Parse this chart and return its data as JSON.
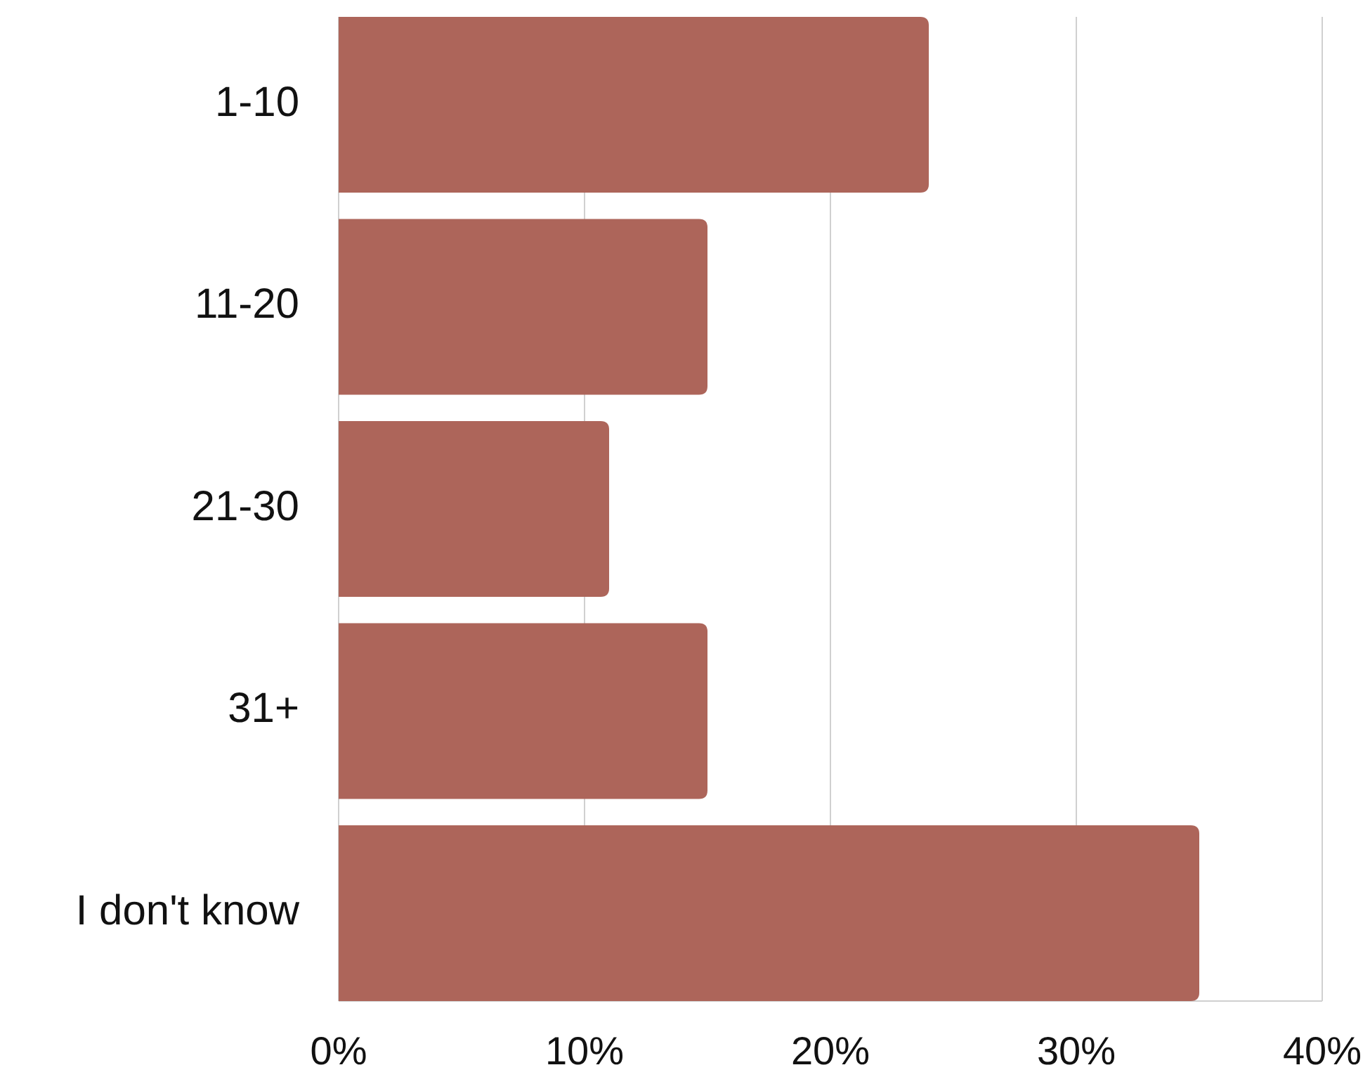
{
  "chart_data": {
    "type": "bar",
    "orientation": "horizontal",
    "categories": [
      "1-10",
      "11-20",
      "21-30",
      "31+",
      "I don't know"
    ],
    "values": [
      24,
      15,
      11,
      15,
      35
    ],
    "color": "#ad655a",
    "xlim": [
      0,
      40
    ],
    "xticks": [
      {
        "value": 0,
        "label": "0%"
      },
      {
        "value": 10,
        "label": "10%"
      },
      {
        "value": 20,
        "label": "20%"
      },
      {
        "value": 30,
        "label": "30%"
      },
      {
        "value": 40,
        "label": "40%"
      }
    ],
    "grid": "x"
  }
}
